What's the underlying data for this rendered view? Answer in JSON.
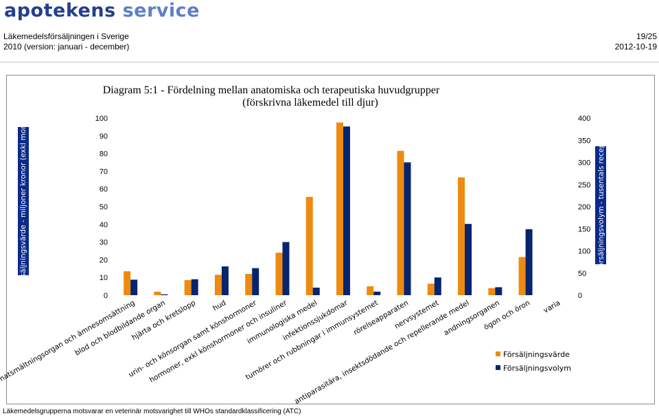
{
  "header": {
    "logo_part1": "apotekens",
    "logo_part2": "service",
    "report_title": "Läkemedelsförsäljningen i Sverige",
    "report_subtitle": "2010 (version: januari - december)",
    "page": "19/25",
    "date": "2012-10-19"
  },
  "footer": "Läkemedelsgrupperna motsvarar en veterinär motsvarighet till WHOs standardklassificering (ATC)",
  "colors": {
    "value": "#ed8a0f",
    "volume": "#07246f",
    "axis_band": "#0b2a8a"
  },
  "chart_data": {
    "type": "bar",
    "title": "Diagram 5:1 - Fördelning mellan anatomiska och terapeutiska huvudgrupper",
    "subtitle": "(förskrivna läkemedel till djur)",
    "ylabel": "försäljningsvärde - miljoner kronor (exkl moms)",
    "y2label": "försäljningsvolym - tusentals recept",
    "ylim": [
      0,
      100
    ],
    "y2lim": [
      0,
      400
    ],
    "yticks": [
      "0",
      "10",
      "20",
      "30",
      "40",
      "50",
      "60",
      "70",
      "80",
      "90",
      "100"
    ],
    "y2ticks": [
      "0",
      "50",
      "100",
      "150",
      "200",
      "250",
      "300",
      "350",
      "400"
    ],
    "legend_position": "bottom-right",
    "categories": [
      "matsmältningsorgan och ämnesomsättning",
      "blod och blodbildande organ",
      "hjärta och kretslopp",
      "hud",
      "urin- och könsorgan samt könshormoner",
      "hormoner, exkl könshormoner och insuliner",
      "immunologiska medel",
      "infektionssjukdomar",
      "tumörer och rubbningar i immunsystemet",
      "rörelseapparaten",
      "nervsystemet",
      "antiparasitära, insektsdödande och repellerande medel",
      "andningsorganen",
      "ögon och öron",
      "varia"
    ],
    "series": [
      {
        "name": "Försäljningsvärde",
        "axis": "left",
        "values": [
          13.5,
          2,
          8.5,
          11.5,
          12,
          24,
          55.5,
          97.5,
          5,
          81.5,
          6.5,
          66.5,
          4,
          21.5,
          0
        ]
      },
      {
        "name": "Försäljningsvolym",
        "axis": "right",
        "values": [
          35,
          2,
          36,
          65,
          61,
          120,
          17,
          381,
          8,
          300,
          40,
          161,
          18,
          149,
          0
        ]
      }
    ]
  }
}
